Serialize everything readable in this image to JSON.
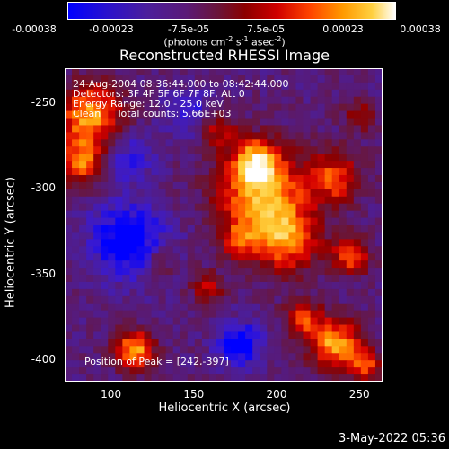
{
  "colorbar": {
    "tick_labels": [
      "-0.00038",
      "-0.00023",
      "-7.5e-05",
      "7.5e-05",
      "0.00023",
      "0.00038"
    ],
    "unit_main": "(photons cm",
    "unit_exp1": "-2",
    "unit_mid": " s",
    "unit_exp2": "-1",
    "unit_mid2": " asec",
    "unit_exp3": "-2",
    "unit_end": ")",
    "colors": [
      "#0000ff",
      "#3b1ad0",
      "#4b1e9c",
      "#5a1a70",
      "#6a1638",
      "#8b0000",
      "#d40000",
      "#ff4a00",
      "#ff9a00",
      "#ffd040",
      "#ffffff"
    ]
  },
  "title": "Reconstructed RHESSI Image",
  "annotations": {
    "line1": "24-Aug-2004 08:36:44.000 to 08:42:44.000",
    "line2": "Detectors: 3F 4F 5F 6F 7F 8F, Att 0",
    "line3": "Energy Range: 12.0 - 25.0 keV",
    "line4": "Clean     Total counts: 5.66E+03",
    "peak": "Position of Peak = [242,-397]"
  },
  "date_stamp": "3-May-2022 05:36",
  "chart_data": {
    "type": "heatmap",
    "title": "Reconstructed RHESSI Image",
    "xlabel": "Heliocentric X (arcsec)",
    "ylabel": "Heliocentric Y (arcsec)",
    "xlim": [
      72,
      264
    ],
    "ylim": [
      -413,
      -230
    ],
    "x_ticks": [
      "100",
      "150",
      "200",
      "250"
    ],
    "y_ticks": [
      "-250",
      "-300",
      "-350",
      "-400"
    ],
    "colorbar_range": [
      -0.00038,
      0.00038
    ],
    "peak": [
      242,
      -397
    ],
    "grid": false
  }
}
